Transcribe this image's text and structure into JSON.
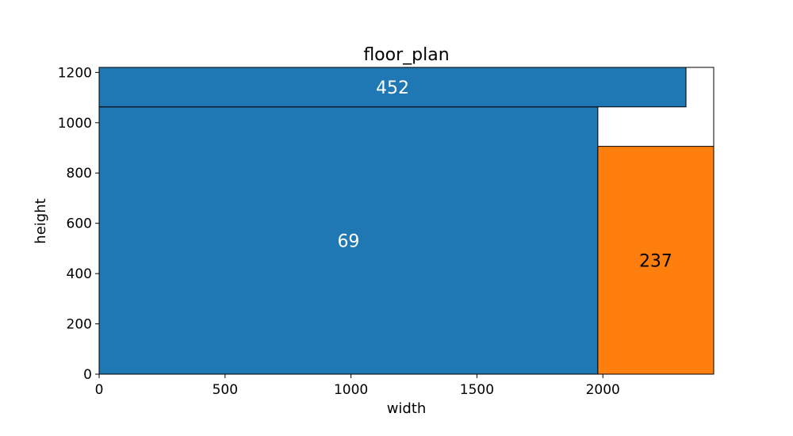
{
  "chart_data": {
    "type": "treemap",
    "title": "floor_plan",
    "xlabel": "width",
    "ylabel": "height",
    "xlim": [
      0,
      2440
    ],
    "ylim": [
      0,
      1220
    ],
    "xticks": [
      0,
      500,
      1000,
      1500,
      2000
    ],
    "yticks": [
      0,
      200,
      400,
      600,
      800,
      1000,
      1200
    ],
    "rects": [
      {
        "label": "69",
        "x0": 0,
        "y0": 0,
        "x1": 1980,
        "y1": 1063,
        "color": "#1f77b4",
        "label_color": "#ffffff"
      },
      {
        "label": "452",
        "x0": 0,
        "y0": 1063,
        "x1": 2330,
        "y1": 1220,
        "color": "#1f77b4",
        "label_color": "#ffffff"
      },
      {
        "label": "237",
        "x0": 1980,
        "y0": 0,
        "x1": 2440,
        "y1": 906,
        "color": "#ff7f0e",
        "label_color": "#000000"
      }
    ]
  }
}
